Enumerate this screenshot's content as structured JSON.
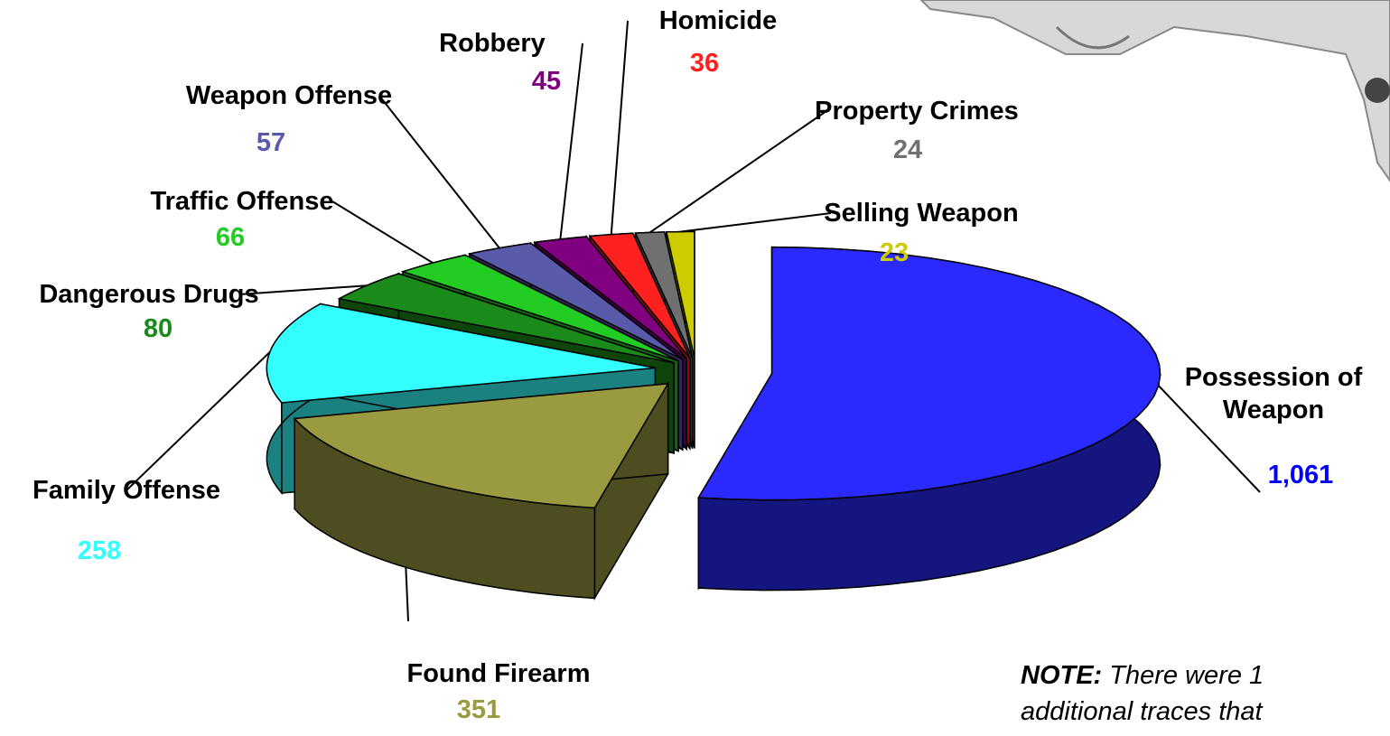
{
  "chart_data": {
    "type": "pie",
    "categories": [
      "Possession of Weapon",
      "Found Firearm",
      "Family Offense",
      "Dangerous Drugs",
      "Traffic Offense",
      "Weapon Offense",
      "Robbery",
      "Homicide",
      "Property Crimes",
      "Selling Weapon"
    ],
    "values": [
      1061,
      351,
      258,
      80,
      66,
      57,
      45,
      36,
      24,
      23
    ],
    "value_labels": [
      "1,061",
      "351",
      "258",
      "80",
      "66",
      "57",
      "45",
      "36",
      "24",
      "23"
    ],
    "colors": [
      "#2a2aff",
      "#9a9a40",
      "#33ffff",
      "#1a8a1a",
      "#22cc22",
      "#5a5aaa",
      "#800080",
      "#ff2020",
      "#707070",
      "#cccc00"
    ],
    "annotations": [
      "NOTE:",
      "There were 1",
      "additional traces that"
    ]
  }
}
